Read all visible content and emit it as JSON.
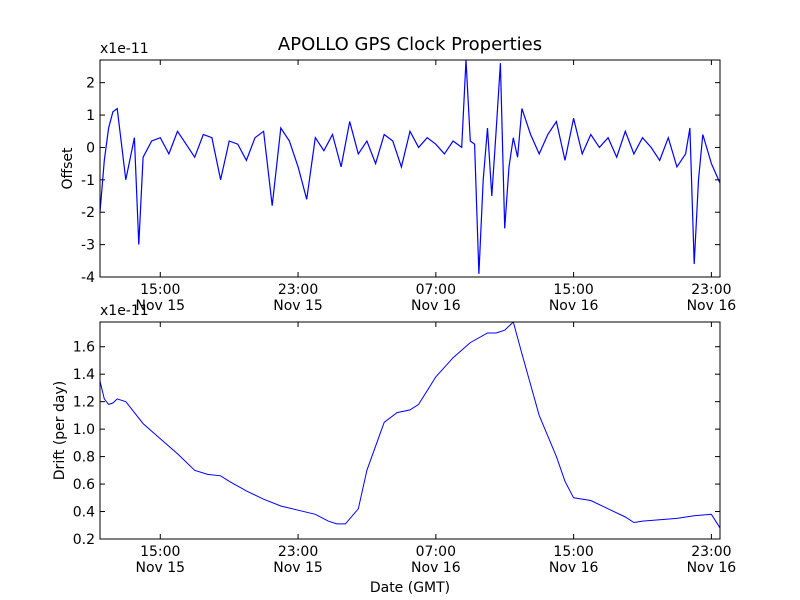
{
  "figure": {
    "title": "APOLLO GPS Clock Properties",
    "xlabel": "Date (GMT)"
  },
  "chart_data": [
    {
      "type": "line",
      "title": "APOLLO GPS Clock Properties",
      "ylabel": "Offset",
      "scale_label": "x1e-11",
      "line_color": "#0000ff",
      "ylim": [
        -4,
        2.7
      ],
      "y_ticks": [
        {
          "label": "2",
          "value": 2
        },
        {
          "label": "1",
          "value": 1
        },
        {
          "label": "0",
          "value": 0
        },
        {
          "label": "-1",
          "value": -1
        },
        {
          "label": "-2",
          "value": -2
        },
        {
          "label": "-3",
          "value": -3
        },
        {
          "label": "-4",
          "value": -4
        }
      ],
      "x_ticks": [
        {
          "time": "15:00",
          "date": "Nov 15"
        },
        {
          "time": "23:00",
          "date": "Nov 15"
        },
        {
          "time": "07:00",
          "date": "Nov 16"
        },
        {
          "time": "15:00",
          "date": "Nov 16"
        },
        {
          "time": "23:00",
          "date": "Nov 16"
        }
      ],
      "xlim": [
        "Nov 15 11:30",
        "Nov 16 23:30"
      ],
      "series": [
        {
          "x": [
            "Nov 15 11:30",
            "Nov 15 11:45",
            "Nov 15 12:00",
            "Nov 15 12:15",
            "Nov 15 12:30",
            "Nov 15 13:00",
            "Nov 15 13:30",
            "Nov 15 13:45",
            "Nov 15 14:00",
            "Nov 15 14:30",
            "Nov 15 15:00",
            "Nov 15 15:30",
            "Nov 15 16:00",
            "Nov 15 16:30",
            "Nov 15 17:00",
            "Nov 15 17:30",
            "Nov 15 18:00",
            "Nov 15 18:30",
            "Nov 15 19:00",
            "Nov 15 19:30",
            "Nov 15 20:00",
            "Nov 15 20:30",
            "Nov 15 21:00",
            "Nov 15 21:30",
            "Nov 15 22:00",
            "Nov 15 22:30",
            "Nov 15 23:00",
            "Nov 15 23:30",
            "Nov 16 00:00",
            "Nov 16 00:30",
            "Nov 16 01:00",
            "Nov 16 01:30",
            "Nov 16 02:00",
            "Nov 16 02:30",
            "Nov 16 03:00",
            "Nov 16 03:30",
            "Nov 16 04:00",
            "Nov 16 04:30",
            "Nov 16 05:00",
            "Nov 16 05:30",
            "Nov 16 06:00",
            "Nov 16 06:30",
            "Nov 16 07:00",
            "Nov 16 07:30",
            "Nov 16 08:00",
            "Nov 16 08:30",
            "Nov 16 08:45",
            "Nov 16 09:00",
            "Nov 16 09:15",
            "Nov 16 09:30",
            "Nov 16 09:45",
            "Nov 16 10:00",
            "Nov 16 10:15",
            "Nov 16 10:30",
            "Nov 16 10:45",
            "Nov 16 11:00",
            "Nov 16 11:15",
            "Nov 16 11:30",
            "Nov 16 11:45",
            "Nov 16 12:00",
            "Nov 16 12:30",
            "Nov 16 13:00",
            "Nov 16 13:30",
            "Nov 16 14:00",
            "Nov 16 14:30",
            "Nov 16 15:00",
            "Nov 16 15:30",
            "Nov 16 16:00",
            "Nov 16 16:30",
            "Nov 16 17:00",
            "Nov 16 17:30",
            "Nov 16 18:00",
            "Nov 16 18:30",
            "Nov 16 19:00",
            "Nov 16 19:30",
            "Nov 16 20:00",
            "Nov 16 20:30",
            "Nov 16 21:00",
            "Nov 16 21:30",
            "Nov 16 21:45",
            "Nov 16 22:00",
            "Nov 16 22:15",
            "Nov 16 22:30",
            "Nov 16 23:00",
            "Nov 16 23:30"
          ],
          "y": [
            -2.0,
            -0.4,
            0.6,
            1.1,
            1.2,
            -1.0,
            0.3,
            -3.0,
            -0.3,
            0.2,
            0.3,
            -0.2,
            0.5,
            0.1,
            -0.3,
            0.4,
            0.3,
            -1.0,
            0.2,
            0.1,
            -0.4,
            0.3,
            0.5,
            -1.8,
            0.6,
            0.2,
            -0.6,
            -1.6,
            0.3,
            -0.1,
            0.4,
            -0.6,
            0.8,
            -0.2,
            0.2,
            -0.5,
            0.4,
            0.2,
            -0.6,
            0.5,
            0.0,
            0.3,
            0.1,
            -0.2,
            0.2,
            0.0,
            2.7,
            0.2,
            0.1,
            -3.9,
            -1.0,
            0.6,
            -1.5,
            0.5,
            2.6,
            -2.5,
            -0.6,
            0.3,
            -0.3,
            1.2,
            0.4,
            -0.2,
            0.4,
            0.8,
            -0.4,
            0.9,
            -0.2,
            0.4,
            0.0,
            0.3,
            -0.3,
            0.5,
            -0.2,
            0.3,
            0.0,
            -0.4,
            0.3,
            -0.6,
            -0.2,
            0.6,
            -3.6,
            -1.0,
            0.4,
            -0.5,
            -1.1
          ]
        }
      ]
    },
    {
      "type": "line",
      "ylabel": "Drift (per day)",
      "scale_label": "x1e-11",
      "xlabel": "Date (GMT)",
      "line_color": "#0000ff",
      "ylim": [
        0.2,
        1.78
      ],
      "y_ticks": [
        {
          "label": "1.6",
          "value": 1.6
        },
        {
          "label": "1.4",
          "value": 1.4
        },
        {
          "label": "1.2",
          "value": 1.2
        },
        {
          "label": "1.0",
          "value": 1.0
        },
        {
          "label": "0.8",
          "value": 0.8
        },
        {
          "label": "0.6",
          "value": 0.6
        },
        {
          "label": "0.4",
          "value": 0.4
        },
        {
          "label": "0.2",
          "value": 0.2
        }
      ],
      "x_ticks": [
        {
          "time": "15:00",
          "date": "Nov 15"
        },
        {
          "time": "23:00",
          "date": "Nov 15"
        },
        {
          "time": "07:00",
          "date": "Nov 16"
        },
        {
          "time": "15:00",
          "date": "Nov 16"
        },
        {
          "time": "23:00",
          "date": "Nov 16"
        }
      ],
      "xlim": [
        "Nov 15 11:30",
        "Nov 16 23:30"
      ],
      "series": [
        {
          "x": [
            "Nov 15 11:30",
            "Nov 15 11:45",
            "Nov 15 12:00",
            "Nov 15 12:15",
            "Nov 15 12:30",
            "Nov 15 13:00",
            "Nov 15 13:30",
            "Nov 15 14:00",
            "Nov 15 15:00",
            "Nov 15 16:00",
            "Nov 15 17:00",
            "Nov 15 17:45",
            "Nov 15 18:30",
            "Nov 15 19:00",
            "Nov 15 20:00",
            "Nov 15 21:00",
            "Nov 15 22:00",
            "Nov 15 23:00",
            "Nov 16 00:00",
            "Nov 16 00:45",
            "Nov 16 01:15",
            "Nov 16 01:45",
            "Nov 16 02:30",
            "Nov 16 03:00",
            "Nov 16 04:00",
            "Nov 16 04:45",
            "Nov 16 05:30",
            "Nov 16 06:00",
            "Nov 16 07:00",
            "Nov 16 08:00",
            "Nov 16 09:00",
            "Nov 16 10:00",
            "Nov 16 10:30",
            "Nov 16 11:00",
            "Nov 16 11:30",
            "Nov 16 12:00",
            "Nov 16 13:00",
            "Nov 16 14:00",
            "Nov 16 14:30",
            "Nov 16 15:00",
            "Nov 16 16:00",
            "Nov 16 17:00",
            "Nov 16 18:00",
            "Nov 16 18:30",
            "Nov 16 19:00",
            "Nov 16 20:00",
            "Nov 16 21:00",
            "Nov 16 22:00",
            "Nov 16 23:00",
            "Nov 16 23:30"
          ],
          "y": [
            1.35,
            1.22,
            1.18,
            1.19,
            1.22,
            1.2,
            1.12,
            1.04,
            0.93,
            0.82,
            0.7,
            0.67,
            0.66,
            0.62,
            0.55,
            0.49,
            0.44,
            0.41,
            0.38,
            0.33,
            0.31,
            0.31,
            0.42,
            0.7,
            1.05,
            1.12,
            1.14,
            1.18,
            1.38,
            1.52,
            1.63,
            1.7,
            1.7,
            1.72,
            1.78,
            1.55,
            1.1,
            0.8,
            0.62,
            0.5,
            0.48,
            0.42,
            0.36,
            0.32,
            0.33,
            0.34,
            0.35,
            0.37,
            0.38,
            0.28
          ]
        }
      ]
    }
  ]
}
